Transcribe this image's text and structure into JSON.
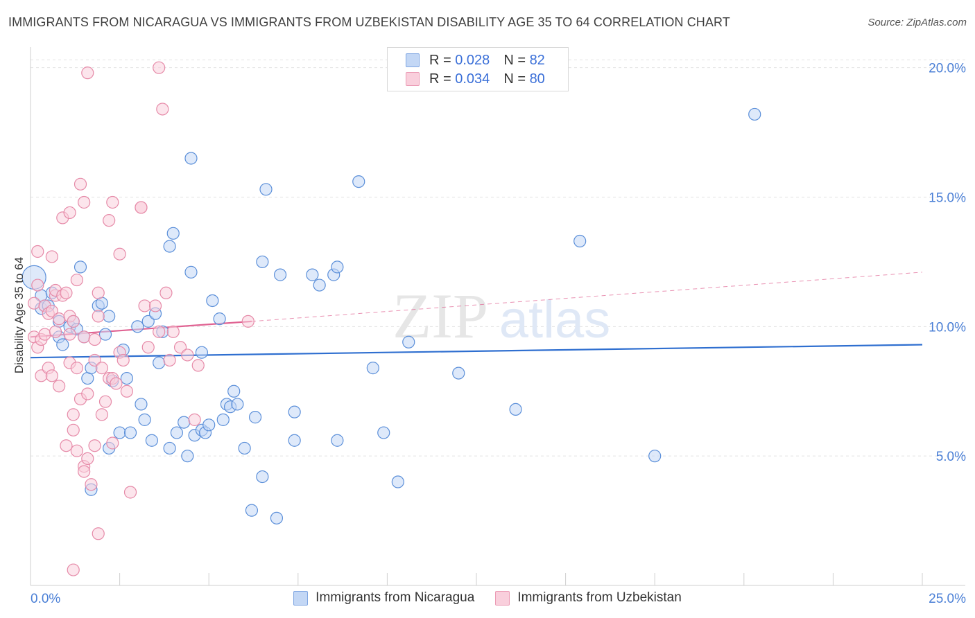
{
  "title": "IMMIGRANTS FROM NICARAGUA VS IMMIGRANTS FROM UZBEKISTAN DISABILITY AGE 35 TO 64 CORRELATION CHART",
  "source": "Source: ZipAtlas.com",
  "watermark": {
    "zip": "ZIP",
    "atlas": "atlas"
  },
  "legend": {
    "rows": [
      {
        "r_label": "R =",
        "r_value": "0.028",
        "n_label": "N =",
        "n_value": "82",
        "color": "#a8c6f0"
      },
      {
        "r_label": "R =",
        "r_value": "0.034",
        "n_label": "N =",
        "n_value": "80",
        "color": "#f5b8cc"
      }
    ]
  },
  "bottom_legend": [
    "Immigrants from Nicaragua",
    "Immigrants from Uzbekistan"
  ],
  "chart_data": {
    "type": "scatter",
    "xlabel": "",
    "ylabel": "Disability Age 35 to 64",
    "xlim": [
      0,
      25
    ],
    "ylim": [
      0,
      20.5
    ],
    "x_tick_labels": [
      {
        "value": 0,
        "label": "0.0%"
      },
      {
        "value": 25,
        "label": "25.0%"
      }
    ],
    "y_tick_labels": [
      {
        "value": 5,
        "label": "5.0%"
      },
      {
        "value": 10,
        "label": "10.0%"
      },
      {
        "value": 15,
        "label": "15.0%"
      },
      {
        "value": 20,
        "label": "20.0%"
      }
    ],
    "grid": "horizontal dashed",
    "series": [
      {
        "name": "Immigrants from Nicaragua",
        "color": "#5b8fd9",
        "fill": "#c3d7f5",
        "trend": {
          "x": [
            0,
            25
          ],
          "y": [
            8.8,
            9.3
          ],
          "style": "solid",
          "color": "#2f6fd0"
        },
        "points": [
          [
            0.1,
            11.9
          ],
          [
            0.3,
            11.2
          ],
          [
            0.3,
            10.7
          ],
          [
            0.4,
            10.8
          ],
          [
            0.5,
            10.8
          ],
          [
            0.6,
            11.3
          ],
          [
            0.8,
            10.2
          ],
          [
            0.8,
            9.6
          ],
          [
            0.9,
            9.3
          ],
          [
            1.1,
            10.0
          ],
          [
            1.2,
            10.2
          ],
          [
            1.3,
            9.9
          ],
          [
            1.4,
            12.3
          ],
          [
            1.5,
            9.6
          ],
          [
            1.6,
            8.0
          ],
          [
            1.7,
            8.4
          ],
          [
            1.7,
            3.7
          ],
          [
            1.9,
            10.8
          ],
          [
            2.0,
            10.9
          ],
          [
            2.1,
            9.7
          ],
          [
            2.2,
            10.4
          ],
          [
            2.2,
            5.3
          ],
          [
            2.3,
            7.9
          ],
          [
            2.5,
            5.9
          ],
          [
            2.6,
            9.1
          ],
          [
            2.7,
            8.0
          ],
          [
            2.8,
            5.9
          ],
          [
            3.0,
            10.0
          ],
          [
            3.1,
            7.0
          ],
          [
            3.2,
            6.4
          ],
          [
            3.3,
            10.2
          ],
          [
            3.4,
            5.6
          ],
          [
            3.5,
            10.5
          ],
          [
            3.6,
            8.6
          ],
          [
            3.7,
            9.8
          ],
          [
            3.9,
            13.1
          ],
          [
            3.9,
            5.3
          ],
          [
            4.0,
            13.6
          ],
          [
            4.1,
            5.9
          ],
          [
            4.3,
            6.3
          ],
          [
            4.4,
            5.0
          ],
          [
            4.5,
            12.1
          ],
          [
            4.5,
            16.5
          ],
          [
            4.6,
            5.8
          ],
          [
            4.8,
            6.0
          ],
          [
            4.8,
            9.0
          ],
          [
            4.9,
            5.9
          ],
          [
            5.0,
            6.2
          ],
          [
            5.1,
            11.0
          ],
          [
            5.3,
            10.3
          ],
          [
            5.4,
            6.4
          ],
          [
            5.5,
            7.0
          ],
          [
            5.6,
            6.9
          ],
          [
            5.7,
            7.5
          ],
          [
            5.8,
            7.0
          ],
          [
            6.0,
            5.3
          ],
          [
            6.2,
            2.9
          ],
          [
            6.3,
            6.5
          ],
          [
            6.5,
            4.2
          ],
          [
            6.5,
            12.5
          ],
          [
            6.6,
            15.3
          ],
          [
            6.9,
            2.6
          ],
          [
            7.0,
            12.0
          ],
          [
            7.4,
            6.7
          ],
          [
            7.4,
            5.6
          ],
          [
            7.9,
            12.0
          ],
          [
            8.1,
            11.6
          ],
          [
            8.5,
            12.0
          ],
          [
            8.6,
            12.3
          ],
          [
            8.6,
            5.6
          ],
          [
            9.2,
            15.6
          ],
          [
            9.6,
            8.4
          ],
          [
            9.9,
            5.9
          ],
          [
            10.3,
            4.0
          ],
          [
            10.6,
            9.4
          ],
          [
            12.0,
            8.2
          ],
          [
            13.6,
            6.8
          ],
          [
            15.4,
            13.3
          ],
          [
            17.5,
            5.0
          ],
          [
            20.3,
            18.2
          ]
        ]
      },
      {
        "name": "Immigrants from Uzbekistan",
        "color": "#e68aa8",
        "fill": "#f9cfdc",
        "trend": {
          "x": [
            0,
            6.2
          ],
          "y": [
            9.6,
            10.2
          ],
          "style": "solid",
          "color": "#e06292",
          "extended": {
            "x": [
              6.2,
              25
            ],
            "y": [
              10.2,
              12.1
            ],
            "style": "dashed"
          }
        },
        "points": [
          [
            0.1,
            9.6
          ],
          [
            0.1,
            10.9
          ],
          [
            0.2,
            11.6
          ],
          [
            0.2,
            12.9
          ],
          [
            0.2,
            9.2
          ],
          [
            0.3,
            9.5
          ],
          [
            0.3,
            8.1
          ],
          [
            0.4,
            10.8
          ],
          [
            0.4,
            9.7
          ],
          [
            0.5,
            10.5
          ],
          [
            0.5,
            8.4
          ],
          [
            0.6,
            10.6
          ],
          [
            0.6,
            8.1
          ],
          [
            0.6,
            12.7
          ],
          [
            0.7,
            11.2
          ],
          [
            0.7,
            11.4
          ],
          [
            0.7,
            9.8
          ],
          [
            0.8,
            10.3
          ],
          [
            0.8,
            7.7
          ],
          [
            0.9,
            14.2
          ],
          [
            0.9,
            11.2
          ],
          [
            1.0,
            11.3
          ],
          [
            1.0,
            5.4
          ],
          [
            1.1,
            14.4
          ],
          [
            1.1,
            10.4
          ],
          [
            1.1,
            9.7
          ],
          [
            1.1,
            8.6
          ],
          [
            1.2,
            10.2
          ],
          [
            1.2,
            6.6
          ],
          [
            1.2,
            6.0
          ],
          [
            1.2,
            0.6
          ],
          [
            1.3,
            11.8
          ],
          [
            1.3,
            8.4
          ],
          [
            1.3,
            5.2
          ],
          [
            1.4,
            15.5
          ],
          [
            1.4,
            7.2
          ],
          [
            1.5,
            14.8
          ],
          [
            1.5,
            9.6
          ],
          [
            1.5,
            4.6
          ],
          [
            1.5,
            4.4
          ],
          [
            1.6,
            19.8
          ],
          [
            1.6,
            7.4
          ],
          [
            1.6,
            4.9
          ],
          [
            1.7,
            3.9
          ],
          [
            1.8,
            9.5
          ],
          [
            1.8,
            8.7
          ],
          [
            1.8,
            5.4
          ],
          [
            1.9,
            11.3
          ],
          [
            1.9,
            10.4
          ],
          [
            1.9,
            2.0
          ],
          [
            2.0,
            8.4
          ],
          [
            2.0,
            6.6
          ],
          [
            2.1,
            7.1
          ],
          [
            2.2,
            8.0
          ],
          [
            2.2,
            14.1
          ],
          [
            2.3,
            8.0
          ],
          [
            2.3,
            14.8
          ],
          [
            2.3,
            5.5
          ],
          [
            2.4,
            7.8
          ],
          [
            2.5,
            12.8
          ],
          [
            2.5,
            9.0
          ],
          [
            2.6,
            8.7
          ],
          [
            2.7,
            7.5
          ],
          [
            2.8,
            3.6
          ],
          [
            3.1,
            14.6
          ],
          [
            3.1,
            14.6
          ],
          [
            3.2,
            10.8
          ],
          [
            3.3,
            9.2
          ],
          [
            3.5,
            10.8
          ],
          [
            3.6,
            20.0
          ],
          [
            3.6,
            9.8
          ],
          [
            3.7,
            18.4
          ],
          [
            3.8,
            11.3
          ],
          [
            3.9,
            8.7
          ],
          [
            4.0,
            9.8
          ],
          [
            4.2,
            9.2
          ],
          [
            4.4,
            8.9
          ],
          [
            4.6,
            6.4
          ],
          [
            4.7,
            8.5
          ],
          [
            6.1,
            10.2
          ]
        ]
      }
    ]
  }
}
